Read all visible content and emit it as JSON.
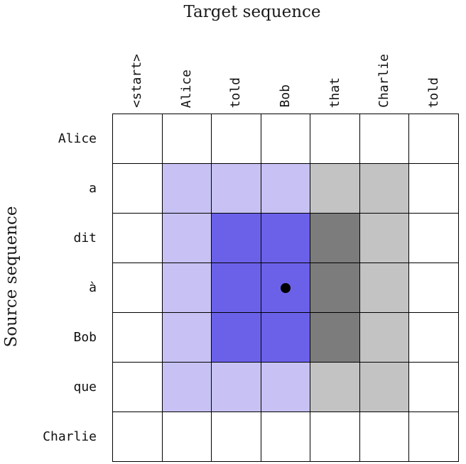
{
  "chart_data": {
    "type": "heatmap",
    "title": "Target sequence",
    "ylabel": "Source sequence",
    "columns": [
      "<start>",
      "Alice",
      "told",
      "Bob",
      "that",
      "Charlie",
      "told"
    ],
    "rows": [
      "Alice",
      "a",
      "dit",
      "à",
      "Bob",
      "que",
      "Charlie"
    ],
    "cells": [
      [
        "white",
        "white",
        "white",
        "white",
        "white",
        "white",
        "white"
      ],
      [
        "white",
        "lavender",
        "lavender",
        "lavender",
        "lightgray",
        "lightgray",
        "white"
      ],
      [
        "white",
        "lavender",
        "blue",
        "blue",
        "darkgray",
        "lightgray",
        "white"
      ],
      [
        "white",
        "lavender",
        "blue",
        "blue",
        "darkgray",
        "lightgray",
        "white"
      ],
      [
        "white",
        "lavender",
        "blue",
        "blue",
        "darkgray",
        "lightgray",
        "white"
      ],
      [
        "white",
        "lavender",
        "lavender",
        "lavender",
        "lightgray",
        "lightgray",
        "white"
      ],
      [
        "white",
        "white",
        "white",
        "white",
        "white",
        "white",
        "white"
      ]
    ],
    "colors": {
      "white": "#ffffff",
      "lavender": "#c7c2f3",
      "blue": "#6b61e9",
      "lightgray": "#c3c3c3",
      "darkgray": "#7c7c7c"
    },
    "dot": {
      "row": 3,
      "col": 3
    },
    "grid_line_color": "#000000",
    "legend": "none",
    "grid": "on"
  }
}
